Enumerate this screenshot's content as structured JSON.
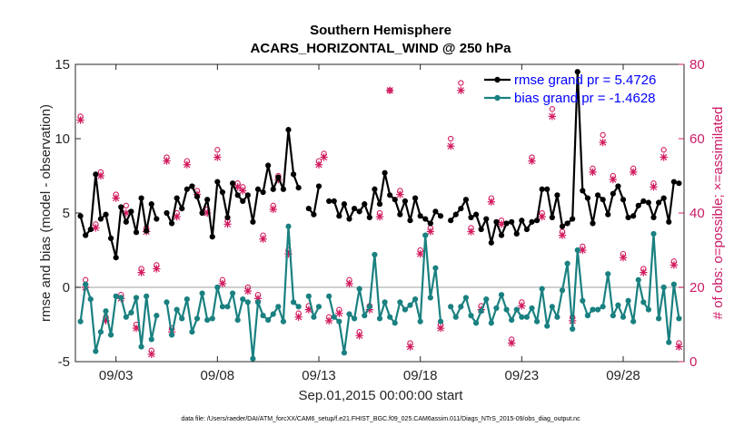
{
  "chart_data": {
    "type": "line",
    "title": "Southern Hemisphere",
    "subtitle": "ACARS_HORIZONTAL_WIND @ 250 hPa",
    "xlabel": "Sep.01,2015 00:00:00 start",
    "ylabel": "rmse and bias (model - observation)",
    "ylabel_right": "# of obs: o=possible; ×=assimilated",
    "footnote": "data file: /Users/raeder/DAI/ATM_forcXX/CAM6_setup/f.e21.FHIST_BGC.f09_025.CAM6assim.011/Diags_NTrS_2015-09/obs_diag_output.nc",
    "xlim": [
      1.0,
      31.0
    ],
    "ylim": [
      -5,
      15
    ],
    "ylim_right": [
      0,
      80
    ],
    "x_ticks": [
      3,
      8,
      13,
      18,
      23,
      28
    ],
    "x_tick_labels": [
      "09/03",
      "09/08",
      "09/13",
      "09/18",
      "09/23",
      "09/28"
    ],
    "y_ticks": [
      -5,
      0,
      5,
      10,
      15
    ],
    "y_tick_labels": [
      "-5",
      "0",
      "5",
      "10",
      "15"
    ],
    "y_ticks_right": [
      0,
      20,
      40,
      60,
      80
    ],
    "y_tick_labels_right": [
      "0",
      "20",
      "40",
      "60",
      "80"
    ],
    "zero_line": 0,
    "colors": {
      "rmse": "#000000",
      "bias": "#1a8080",
      "obs": "#d11a5e",
      "zero": "#bfbfbf",
      "legend_text": "#0000ff"
    },
    "series": [
      {
        "name": "rmse",
        "legend": "rmse grand pr = 5.4726",
        "x": [
          1.25,
          1.5,
          1.75,
          2.0,
          2.25,
          2.5,
          2.75,
          3.0,
          3.25,
          3.5,
          3.75,
          4.0,
          4.25,
          4.5,
          4.75,
          5.0,
          null,
          5.5,
          5.75,
          6.0,
          6.25,
          6.5,
          6.75,
          7.0,
          7.25,
          7.5,
          7.75,
          8.0,
          8.25,
          8.5,
          8.75,
          9.0,
          9.25,
          9.5,
          9.75,
          10.0,
          10.25,
          10.5,
          10.75,
          11.0,
          11.25,
          11.5,
          11.75,
          12.0,
          null,
          12.5,
          12.75,
          13.0,
          null,
          13.5,
          13.75,
          14.0,
          14.25,
          14.5,
          14.75,
          15.0,
          15.25,
          15.5,
          15.75,
          16.0,
          16.25,
          16.5,
          16.75,
          17.0,
          17.25,
          17.5,
          17.75,
          18.0,
          18.25,
          18.5,
          18.75,
          19.0,
          19.25,
          19.5,
          19.75,
          20.0,
          20.25,
          20.5,
          20.75,
          21.0,
          21.25,
          21.5,
          21.75,
          22.0,
          22.25,
          22.5,
          22.75,
          23.0,
          23.25,
          23.5,
          23.75,
          24.0,
          24.25,
          24.5,
          24.75,
          25.0,
          25.25,
          25.5,
          25.75,
          26.0,
          26.25,
          26.5,
          26.75,
          27.0,
          27.25,
          27.5,
          27.75,
          28.0,
          28.25,
          28.5,
          28.75,
          29.0,
          29.25,
          29.5,
          29.75,
          30.0,
          30.25,
          30.5,
          30.75
        ],
        "y": [
          4.8,
          3.5,
          3.9,
          7.6,
          4.6,
          4.9,
          3.3,
          2.0,
          5.4,
          4.4,
          5.1,
          3.7,
          6.0,
          3.8,
          5.6,
          4.6,
          null,
          5.0,
          4.3,
          6.0,
          5.3,
          6.6,
          6.8,
          6.1,
          5.0,
          5.9,
          3.4,
          7.1,
          6.4,
          4.7,
          7.0,
          6.2,
          5.8,
          6.2,
          4.4,
          6.6,
          6.4,
          8.2,
          6.6,
          7.4,
          6.6,
          10.6,
          7.6,
          6.7,
          null,
          5.3,
          4.9,
          6.8,
          null,
          5.8,
          5.8,
          4.8,
          5.6,
          4.6,
          5.3,
          5.1,
          5.6,
          4.7,
          6.6,
          5.6,
          7.7,
          6.2,
          5.9,
          4.9,
          5.8,
          4.5,
          6.0,
          4.8,
          4.6,
          4.3,
          5.1,
          4.8,
          null,
          4.5,
          4.9,
          5.3,
          5.9,
          4.7,
          4.9,
          3.9,
          4.6,
          3.0,
          4.4,
          3.5,
          4.3,
          4.4,
          3.6,
          4.5,
          3.9,
          4.4,
          4.5,
          6.6,
          6.6,
          4.7,
          6.2,
          4.1,
          4.3,
          4.6,
          14.5,
          6.5,
          6.0,
          4.3,
          6.2,
          5.9,
          4.9,
          6.3,
          6.8,
          5.9,
          4.7,
          4.8,
          5.5,
          5.8,
          5.7,
          4.7,
          5.7,
          6.0,
          4.4,
          7.1,
          7.0
        ]
      },
      {
        "name": "bias",
        "legend": "bias grand pr = -1.4628",
        "x": [
          1.25,
          1.5,
          1.75,
          2.0,
          2.25,
          2.5,
          2.75,
          3.0,
          3.25,
          3.5,
          3.75,
          4.0,
          4.25,
          4.5,
          4.75,
          5.0,
          null,
          5.5,
          5.75,
          6.0,
          6.25,
          6.5,
          6.75,
          7.0,
          7.25,
          7.5,
          7.75,
          8.0,
          8.25,
          8.5,
          8.75,
          9.0,
          9.25,
          9.5,
          9.75,
          10.0,
          10.25,
          10.5,
          10.75,
          11.0,
          11.25,
          11.5,
          11.75,
          12.0,
          null,
          12.5,
          12.75,
          13.0,
          null,
          13.5,
          13.75,
          14.0,
          14.25,
          14.5,
          14.75,
          15.0,
          15.25,
          15.5,
          15.75,
          16.0,
          16.25,
          16.5,
          16.75,
          17.0,
          17.25,
          17.5,
          17.75,
          18.0,
          18.25,
          18.5,
          18.75,
          19.0,
          19.25,
          19.5,
          19.75,
          20.0,
          20.25,
          20.5,
          20.75,
          21.0,
          21.25,
          21.5,
          21.75,
          22.0,
          22.25,
          22.5,
          22.75,
          23.0,
          23.25,
          23.5,
          23.75,
          24.0,
          24.25,
          24.5,
          24.75,
          25.0,
          25.25,
          25.5,
          25.75,
          26.0,
          26.25,
          26.5,
          26.75,
          27.0,
          27.25,
          27.5,
          27.75,
          28.0,
          28.25,
          28.5,
          28.75,
          29.0,
          29.25,
          29.5,
          29.75,
          30.0,
          30.25,
          30.5,
          30.75
        ],
        "y": [
          -2.3,
          0.2,
          -0.8,
          -4.3,
          -3.0,
          -1.6,
          -3.2,
          -0.6,
          -0.7,
          -2.0,
          -1.7,
          -0.7,
          -4.0,
          -0.6,
          -3.5,
          -1.9,
          null,
          -1.0,
          -3.2,
          -1.5,
          -2.1,
          -0.8,
          -3.0,
          -2.1,
          -0.4,
          -2.2,
          -2.1,
          0.0,
          -1.3,
          -1.3,
          -0.4,
          -2.2,
          -0.8,
          -1.0,
          -4.8,
          -1.0,
          -1.9,
          -2.2,
          -1.8,
          -1.3,
          -2.3,
          4.1,
          -1.0,
          -1.3,
          null,
          -0.6,
          -2.0,
          -1.3,
          null,
          -0.6,
          -2.0,
          -2.3,
          -4.4,
          -1.8,
          -2.1,
          -0.1,
          -1.9,
          -1.3,
          2.2,
          -2.1,
          -1.0,
          -2.0,
          -2.4,
          -1.0,
          -1.5,
          -1.2,
          -0.8,
          -2.3,
          3.5,
          -0.7,
          1.3,
          -2.3,
          null,
          -1.3,
          -2.0,
          -1.3,
          -0.7,
          -1.9,
          -2.4,
          -1.6,
          -0.8,
          -2.4,
          -1.4,
          -0.5,
          -1.5,
          -2.2,
          -1.5,
          -2.0,
          -2.0,
          -1.4,
          -2.3,
          -0.1,
          -2.6,
          -1.3,
          -2.0,
          -0.2,
          1.6,
          -2.8,
          2.5,
          -0.9,
          -1.9,
          -1.5,
          -1.5,
          -1.3,
          0.9,
          -1.9,
          -1.2,
          -2.0,
          -0.9,
          -2.3,
          0.5,
          -1.0,
          -1.5,
          3.6,
          -2.1,
          0.0,
          -3.7,
          0.2,
          -2.1
        ]
      }
    ],
    "obs_possible": {
      "x": [
        1.25,
        1.5,
        2.0,
        2.25,
        2.5,
        3.0,
        3.25,
        3.5,
        4.0,
        4.25,
        4.5,
        4.75,
        5.0,
        5.5,
        5.75,
        6.0,
        6.5,
        7.0,
        7.5,
        8.0,
        8.25,
        8.5,
        9.0,
        9.25,
        9.5,
        10.0,
        10.25,
        10.75,
        11.0,
        11.5,
        12.0,
        12.5,
        13.0,
        13.25,
        13.5,
        14.0,
        14.5,
        15.0,
        15.5,
        16.0,
        16.5,
        17.0,
        17.5,
        18.0,
        18.5,
        19.0,
        19.5,
        20.0,
        20.5,
        21.0,
        21.5,
        22.0,
        22.5,
        23.0,
        23.5,
        24.0,
        24.5,
        25.0,
        25.5,
        26.0,
        26.5,
        27.0,
        27.5,
        28.0,
        28.5,
        29.0,
        29.5,
        30.0,
        30.5,
        30.75
      ],
      "y": [
        66,
        22,
        37,
        51,
        12,
        45,
        18,
        42,
        10,
        25,
        36,
        3,
        26,
        55,
        9,
        40,
        54,
        46,
        41,
        57,
        22,
        38,
        48,
        47,
        20,
        18,
        34,
        42,
        50,
        30,
        13,
        15,
        54,
        56,
        12,
        14,
        22,
        8,
        15,
        40,
        73,
        46,
        5,
        30,
        36,
        10,
        60,
        75,
        36,
        15,
        44,
        38,
        6,
        16,
        55,
        40,
        68,
        35,
        12,
        31,
        52,
        61,
        50,
        29,
        52,
        25,
        48,
        57,
        27,
        5
      ]
    },
    "obs_assimilated": {
      "x": [
        1.25,
        1.5,
        2.0,
        2.25,
        2.5,
        3.0,
        3.25,
        3.5,
        4.0,
        4.25,
        4.5,
        4.75,
        5.0,
        5.5,
        5.75,
        6.0,
        6.5,
        7.0,
        7.5,
        8.0,
        8.25,
        8.5,
        9.0,
        9.25,
        9.5,
        10.0,
        10.25,
        10.75,
        11.0,
        11.5,
        12.0,
        12.5,
        13.0,
        13.25,
        13.5,
        14.0,
        14.5,
        15.0,
        15.5,
        16.0,
        16.5,
        17.0,
        17.5,
        18.0,
        18.5,
        19.0,
        19.5,
        20.0,
        20.5,
        21.0,
        21.5,
        22.0,
        22.5,
        23.0,
        23.5,
        24.0,
        24.5,
        25.0,
        25.5,
        26.0,
        26.5,
        27.0,
        27.5,
        28.0,
        28.5,
        29.0,
        29.5,
        30.0,
        30.5,
        30.75
      ],
      "y": [
        65,
        20,
        36,
        50,
        11,
        44,
        17,
        40,
        9,
        24,
        35,
        2,
        25,
        54,
        8,
        39,
        53,
        45,
        40,
        55,
        21,
        37,
        47,
        46,
        19,
        17,
        33,
        41,
        49,
        29,
        12,
        14,
        53,
        55,
        11,
        13,
        21,
        7,
        14,
        39,
        73,
        45,
        4,
        29,
        35,
        9,
        58,
        73,
        35,
        14,
        43,
        37,
        5,
        15,
        54,
        39,
        66,
        34,
        11,
        30,
        51,
        59,
        49,
        28,
        51,
        24,
        47,
        55,
        26,
        4
      ]
    }
  }
}
